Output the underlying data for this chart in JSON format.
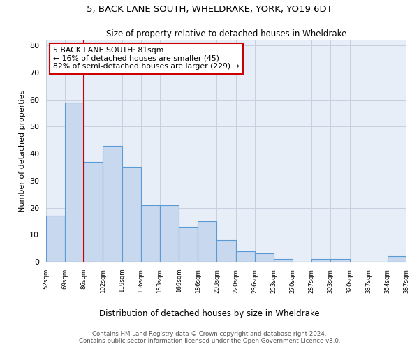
{
  "title1": "5, BACK LANE SOUTH, WHELDRAKE, YORK, YO19 6DT",
  "title2": "Size of property relative to detached houses in Wheldrake",
  "xlabel": "Distribution of detached houses by size in Wheldrake",
  "ylabel": "Number of detached properties",
  "bar_values": [
    17,
    59,
    37,
    43,
    35,
    21,
    21,
    13,
    15,
    8,
    4,
    3,
    1,
    0,
    1,
    1,
    0,
    0,
    2
  ],
  "bin_labels": [
    "52sqm",
    "69sqm",
    "86sqm",
    "102sqm",
    "119sqm",
    "136sqm",
    "153sqm",
    "169sqm",
    "186sqm",
    "203sqm",
    "220sqm",
    "236sqm",
    "253sqm",
    "270sqm",
    "287sqm",
    "303sqm",
    "320sqm",
    "337sqm",
    "354sqm",
    "387sqm"
  ],
  "bar_color": "#c8d8ee",
  "bar_edge_color": "#5b9bd5",
  "grid_color": "#c8d0e0",
  "vline_x": 1.5,
  "vline_color": "#cc0000",
  "annotation_text": "5 BACK LANE SOUTH: 81sqm\n← 16% of detached houses are smaller (45)\n82% of semi-detached houses are larger (229) →",
  "annotation_box_color": "#cc0000",
  "ylim": [
    0,
    82
  ],
  "yticks": [
    0,
    10,
    20,
    30,
    40,
    50,
    60,
    70,
    80
  ],
  "footer1": "Contains HM Land Registry data © Crown copyright and database right 2024.",
  "footer2": "Contains public sector information licensed under the Open Government Licence v3.0.",
  "bg_color": "#e8eef8"
}
